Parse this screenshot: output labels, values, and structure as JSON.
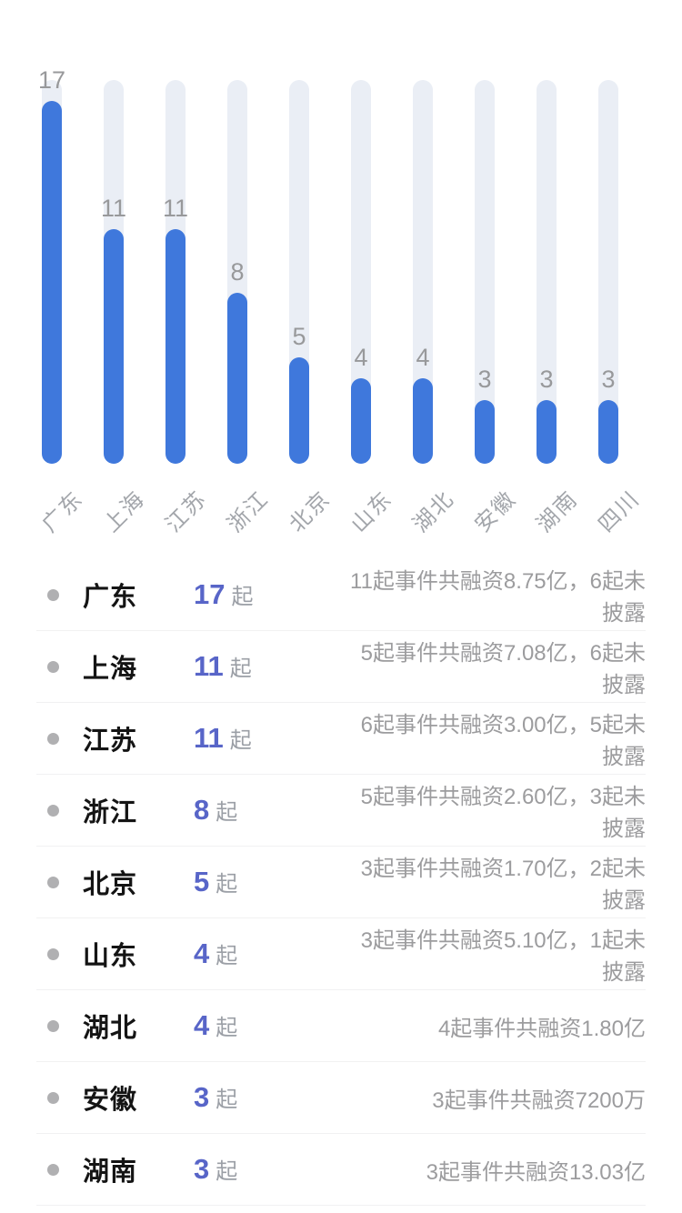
{
  "colors": {
    "bar": "#3F78DC",
    "track": "#EAEEF5",
    "count_accent": "#5865C8"
  },
  "chart_data": {
    "type": "bar",
    "categories": [
      "广东",
      "上海",
      "江苏",
      "浙江",
      "北京",
      "山东",
      "湖北",
      "安徽",
      "湖南",
      "四川"
    ],
    "values": [
      17,
      11,
      11,
      8,
      5,
      4,
      4,
      3,
      3,
      3
    ],
    "title": "",
    "xlabel": "",
    "ylabel": "",
    "ylim": [
      0,
      18
    ],
    "grid": false,
    "legend": false,
    "value_labels": [
      "17",
      "11",
      "11",
      "8",
      "5",
      "4",
      "4",
      "3",
      "3",
      "3"
    ]
  },
  "list": {
    "unit": "起",
    "rows": [
      {
        "name": "广东",
        "count": "17",
        "desc": "11起事件共融资8.75亿，6起未披露"
      },
      {
        "name": "上海",
        "count": "11",
        "desc": "5起事件共融资7.08亿，6起未披露"
      },
      {
        "name": "江苏",
        "count": "11",
        "desc": "6起事件共融资3.00亿，5起未披露"
      },
      {
        "name": "浙江",
        "count": "8",
        "desc": "5起事件共融资2.60亿，3起未披露"
      },
      {
        "name": "北京",
        "count": "5",
        "desc": "3起事件共融资1.70亿，2起未披露"
      },
      {
        "name": "山东",
        "count": "4",
        "desc": "3起事件共融资5.10亿，1起未披露"
      },
      {
        "name": "湖北",
        "count": "4",
        "desc": "4起事件共融资1.80亿"
      },
      {
        "name": "安徽",
        "count": "3",
        "desc": "3起事件共融资7200万"
      },
      {
        "name": "湖南",
        "count": "3",
        "desc": "3起事件共融资13.03亿"
      }
    ]
  }
}
